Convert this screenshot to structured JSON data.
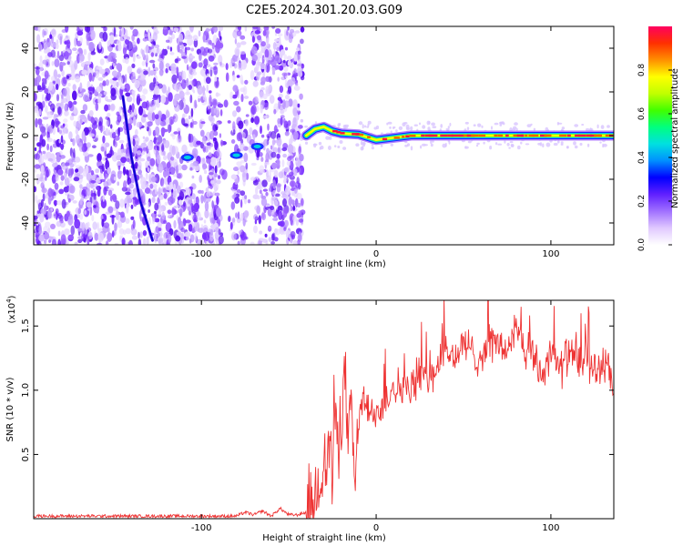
{
  "title": "C2E5.2024.301.20.03.G09",
  "chart_data": [
    {
      "type": "heatmap",
      "description": "Spectrogram of normalized spectral amplitude",
      "xlabel": "Height of straight line (km)",
      "ylabel": "Frequency (Hz)",
      "xlim": [
        -196,
        136
      ],
      "ylim": [
        -50,
        50
      ],
      "xticks": [
        -100,
        0,
        100
      ],
      "xtick_labels": [
        "-100",
        "0",
        "100"
      ],
      "yticks": [
        -40,
        -20,
        0,
        20,
        40
      ],
      "ytick_labels": [
        "-40",
        "-20",
        "0",
        "20",
        "40"
      ],
      "colorbar": {
        "label": "Normalized spectral amplitude",
        "range": [
          0,
          1
        ],
        "ticks": [
          0.0,
          0.2,
          0.4,
          0.6,
          0.8
        ],
        "tick_labels": [
          "0.0",
          "0.2",
          "0.4",
          "0.6",
          "0.8"
        ],
        "colormap": [
          "#ffffff",
          "#e0c8ff",
          "#a070ff",
          "#6020ff",
          "#0000ff",
          "#0090ff",
          "#00e0e0",
          "#00ff80",
          "#40ff00",
          "#c0ff00",
          "#ffff00",
          "#ff9000",
          "#ff3000",
          "#ff0060"
        ]
      },
      "ridge": {
        "name": "dominant frequency",
        "x": [
          -40,
          -35,
          -30,
          -25,
          -20,
          -10,
          0,
          10,
          20,
          40,
          60,
          80,
          100,
          136
        ],
        "y": [
          0,
          3,
          4,
          2,
          1,
          0.5,
          -2,
          -1,
          0,
          0,
          0,
          0,
          0,
          0
        ]
      },
      "streak": {
        "x": [
          -145,
          -140,
          -135,
          -128
        ],
        "y": [
          18,
          -10,
          -30,
          -48
        ]
      },
      "blobs": [
        {
          "x": -108,
          "y": -10
        },
        {
          "x": -80,
          "y": -9
        },
        {
          "x": -68,
          "y": -5
        }
      ]
    },
    {
      "type": "line",
      "xlabel": "Height of straight line (km)",
      "ylabel": "SNR (10 * v/v)",
      "y_multiplier": "(x10",
      "y_multiplier_exp": "4",
      "y_multiplier_close": ")",
      "xlim": [
        -196,
        136
      ],
      "ylim": [
        0,
        1.7
      ],
      "xticks": [
        -100,
        0,
        100
      ],
      "xtick_labels": [
        "-100",
        "0",
        "100"
      ],
      "yticks": [
        0.5,
        1.0,
        1.5
      ],
      "ytick_labels": [
        "0.5",
        "1.0",
        "1.5"
      ],
      "color": "#ee3333",
      "series": [
        {
          "x": [
            -196,
            -180,
            -160,
            -140,
            -120,
            -100,
            -80,
            -75,
            -70,
            -65,
            -60,
            -55,
            -50,
            -45,
            -40,
            -35,
            -32,
            -30,
            -28,
            -26,
            -25,
            -24,
            -22,
            -20,
            -18,
            -16,
            -14,
            -12,
            -10,
            -8,
            -5,
            0,
            5,
            10,
            15,
            20,
            25,
            30,
            35,
            40,
            45,
            50,
            55,
            60,
            65,
            70,
            75,
            80,
            85,
            90,
            95,
            100,
            105,
            110,
            115,
            120,
            125,
            130,
            136
          ],
          "y": [
            0.02,
            0.02,
            0.02,
            0.02,
            0.02,
            0.02,
            0.02,
            0.05,
            0.03,
            0.06,
            0.02,
            0.08,
            0.03,
            0.03,
            0.05,
            0.15,
            0.3,
            0.5,
            0.4,
            0.65,
            0.2,
            0.9,
            0.55,
            0.85,
            1.1,
            0.6,
            0.8,
            0.2,
            0.75,
            0.95,
            0.8,
            0.85,
            0.9,
            1.05,
            1.0,
            1.0,
            1.15,
            1.05,
            1.2,
            1.3,
            1.25,
            1.35,
            1.3,
            1.25,
            1.4,
            1.35,
            1.3,
            1.5,
            1.25,
            1.3,
            1.1,
            1.35,
            1.15,
            1.3,
            1.2,
            1.25,
            1.15,
            1.2,
            1.05
          ]
        }
      ]
    }
  ]
}
